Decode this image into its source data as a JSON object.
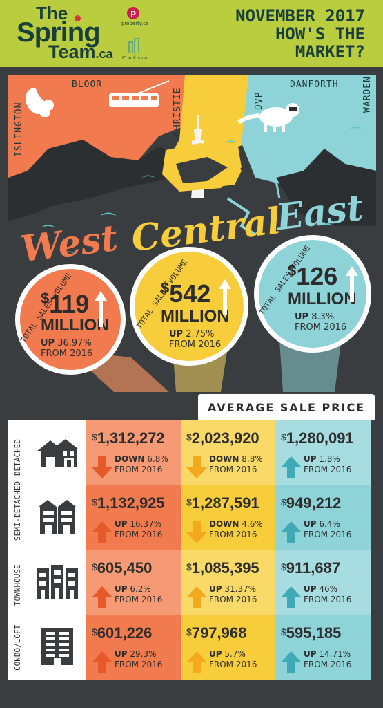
{
  "header": {
    "logo_the": "The",
    "logo_spring": "Spring",
    "logo_team": "Team",
    "logo_ca": ".ca",
    "partner1_mark": "p",
    "partner1_text": "property.ca",
    "partner2_text": "Condos.ca",
    "title_line1": "NOVEMBER 2017",
    "title_line2": "HOW'S THE",
    "title_line3": "MARKET?"
  },
  "map": {
    "streets": {
      "bloor": "BLOOR",
      "islington": "ISLINGTON",
      "christie": "CHRISTIE",
      "dvp": "DVP",
      "danforth": "DANFORTH",
      "warden": "WARDEN"
    },
    "regions": [
      "West",
      "Central",
      "East"
    ],
    "colors": {
      "west": "#f27a4f",
      "central": "#f7cd3c",
      "east": "#8ed3d8"
    }
  },
  "volumes": [
    {
      "region": "West",
      "label": "TOTAL SALES VOLUME",
      "currency": "$",
      "amount": "119",
      "unit": "MILLION",
      "direction": "UP",
      "change": "36.97%",
      "period": "FROM 2016"
    },
    {
      "region": "Central",
      "label": "TOTAL SALES VOLUME",
      "currency": "$",
      "amount": "542",
      "unit": "MILLION",
      "direction": "UP",
      "change": "2.75%",
      "period": "FROM 2016"
    },
    {
      "region": "East",
      "label": "TOTAL SALES VOLUME",
      "currency": "$",
      "amount": "126",
      "unit": "MILLION",
      "direction": "UP",
      "change": "8.3%",
      "period": "FROM 2016"
    }
  ],
  "table": {
    "title": "AVERAGE SALE PRICE",
    "rows": [
      {
        "type": "DETACHED",
        "icon": "house-icon",
        "cells": [
          {
            "price": "1,312,272",
            "dir": "DOWN",
            "chg": "6.8%",
            "from": "FROM 2016"
          },
          {
            "price": "2,023,920",
            "dir": "DOWN",
            "chg": "8.8%",
            "from": "FROM 2016"
          },
          {
            "price": "1,280,091",
            "dir": "UP",
            "chg": "1.8%",
            "from": "FROM 2016"
          }
        ]
      },
      {
        "type": "SEMI-DETACHED",
        "icon": "semi-detached-icon",
        "cells": [
          {
            "price": "1,132,925",
            "dir": "UP",
            "chg": "16.37%",
            "from": "FROM 2016"
          },
          {
            "price": "1,287,591",
            "dir": "DOWN",
            "chg": "4.6%",
            "from": "FROM 2016"
          },
          {
            "price": "949,212",
            "dir": "UP",
            "chg": "6.4%",
            "from": "FROM 2016"
          }
        ]
      },
      {
        "type": "TOWNHOUSE",
        "icon": "townhouse-icon",
        "cells": [
          {
            "price": "605,450",
            "dir": "UP",
            "chg": "6.2%",
            "from": "FROM 2016"
          },
          {
            "price": "1,085,395",
            "dir": "UP",
            "chg": "31.37%",
            "from": "FROM 2016"
          },
          {
            "price": "911,687",
            "dir": "UP",
            "chg": "46%",
            "from": "FROM 2016"
          }
        ]
      },
      {
        "type": "CONDO/LOFT",
        "icon": "condo-icon",
        "cells": [
          {
            "price": "601,226",
            "dir": "UP",
            "chg": "29.3%",
            "from": "FROM 2016"
          },
          {
            "price": "797,968",
            "dir": "UP",
            "chg": "5.7%",
            "from": "FROM 2016"
          },
          {
            "price": "595,185",
            "dir": "UP",
            "chg": "14.71%",
            "from": "FROM 2016"
          }
        ]
      }
    ],
    "column_colors": [
      "#f27a4f",
      "#f7cd3c",
      "#8ed3d8"
    ],
    "column_colors_light": [
      "#f59a74",
      "#f9d967",
      "#a7dde1"
    ],
    "arrow_colors": [
      "#e5592a",
      "#f4a81d",
      "#3fa9b5"
    ]
  }
}
